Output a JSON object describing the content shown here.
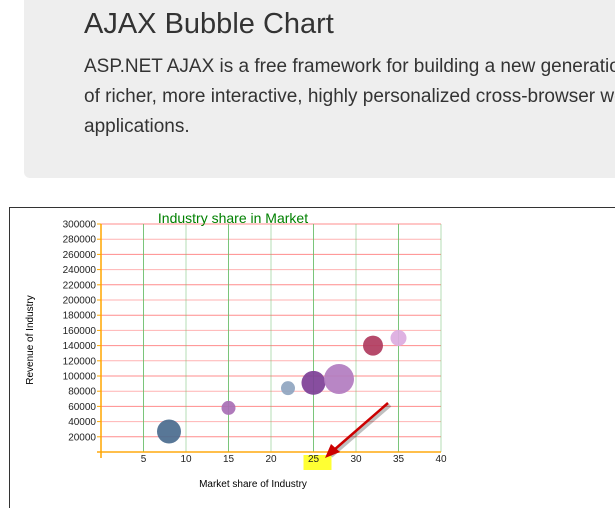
{
  "hero": {
    "title": "AJAX Bubble Chart",
    "description": "ASP.NET AJAX is a free framework for building a new generation of richer, more interactive, highly personalized cross-browser web applications."
  },
  "chart_data": {
    "type": "bubble",
    "title": "Industry share in Market",
    "xlabel": "Market share of Industry",
    "ylabel": "Revenue of Industry",
    "xlim": [
      0,
      40
    ],
    "ylim": [
      0,
      300000
    ],
    "x_ticks": [
      5,
      10,
      15,
      20,
      25,
      30,
      35,
      40
    ],
    "y_ticks": [
      20000,
      40000,
      60000,
      80000,
      100000,
      120000,
      140000,
      160000,
      180000,
      200000,
      220000,
      240000,
      260000,
      280000,
      300000
    ],
    "grid": true,
    "colors": {
      "title": "#008000",
      "hgrid": "#ff8080",
      "vgrid": "#6cbf6c",
      "axis": "#ffa500",
      "highlight": "#ffff33",
      "arrow": "#cc0000"
    },
    "highlighted_x_tick": 25,
    "points": [
      {
        "x": 8,
        "y": 27000,
        "size": 12,
        "color": "#4a6b8e"
      },
      {
        "x": 15,
        "y": 58000,
        "size": 7,
        "color": "#a86fb5"
      },
      {
        "x": 22,
        "y": 84000,
        "size": 7,
        "color": "#8fa5c0"
      },
      {
        "x": 25,
        "y": 91000,
        "size": 12,
        "color": "#7d3f97"
      },
      {
        "x": 28,
        "y": 96000,
        "size": 15,
        "color": "#b27cc0"
      },
      {
        "x": 32,
        "y": 140000,
        "size": 10,
        "color": "#b03b5e"
      },
      {
        "x": 35,
        "y": 150000,
        "size": 8,
        "color": "#dcabdf"
      }
    ]
  }
}
